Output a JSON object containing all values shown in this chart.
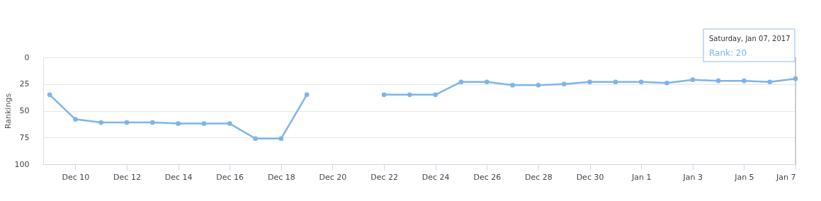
{
  "chart_data": {
    "type": "line",
    "ylabel": "Rankings",
    "color": "#7cb5ec",
    "marker": "circle",
    "grid": "y",
    "x": [
      "2016-12-09",
      "2016-12-10",
      "2016-12-11",
      "2016-12-12",
      "2016-12-13",
      "2016-12-14",
      "2016-12-15",
      "2016-12-16",
      "2016-12-17",
      "2016-12-18",
      "2016-12-19",
      "2016-12-20",
      "2016-12-21",
      "2016-12-22",
      "2016-12-23",
      "2016-12-24",
      "2016-12-25",
      "2016-12-26",
      "2016-12-27",
      "2016-12-28",
      "2016-12-29",
      "2016-12-30",
      "2016-12-31",
      "2017-01-01",
      "2017-01-02",
      "2017-01-03",
      "2017-01-04",
      "2017-01-05",
      "2017-01-06",
      "2017-01-07"
    ],
    "values": [
      35,
      58,
      61,
      61,
      61,
      62,
      62,
      62,
      76,
      76,
      35,
      null,
      null,
      35,
      35,
      35,
      23,
      23,
      26,
      26,
      25,
      23,
      23,
      23,
      24,
      21,
      22,
      22,
      23,
      20
    ],
    "xlim": [
      "2016-12-08T18:00",
      "2017-01-07"
    ],
    "xticks": [
      {
        "value": "2016-12-10",
        "label": "Dec 10"
      },
      {
        "value": "2016-12-12",
        "label": "Dec 12"
      },
      {
        "value": "2016-12-14",
        "label": "Dec 14"
      },
      {
        "value": "2016-12-16",
        "label": "Dec 16"
      },
      {
        "value": "2016-12-18",
        "label": "Dec 18"
      },
      {
        "value": "2016-12-20",
        "label": "Dec 20"
      },
      {
        "value": "2016-12-22",
        "label": "Dec 22"
      },
      {
        "value": "2016-12-24",
        "label": "Dec 24"
      },
      {
        "value": "2016-12-26",
        "label": "Dec 26"
      },
      {
        "value": "2016-12-28",
        "label": "Dec 28"
      },
      {
        "value": "2016-12-30",
        "label": "Dec 30"
      },
      {
        "value": "2017-01-01",
        "label": "Jan 1"
      },
      {
        "value": "2017-01-03",
        "label": "Jan 3"
      },
      {
        "value": "2017-01-05",
        "label": "Jan 5"
      },
      {
        "value": "2017-01-07",
        "label": "Jan 7"
      }
    ],
    "ylim": [
      100,
      0
    ],
    "yticks": [
      0,
      25,
      50,
      75,
      100
    ],
    "annotations": [
      "Saturday, Jan 07, 2017",
      "Rank: 20"
    ]
  }
}
